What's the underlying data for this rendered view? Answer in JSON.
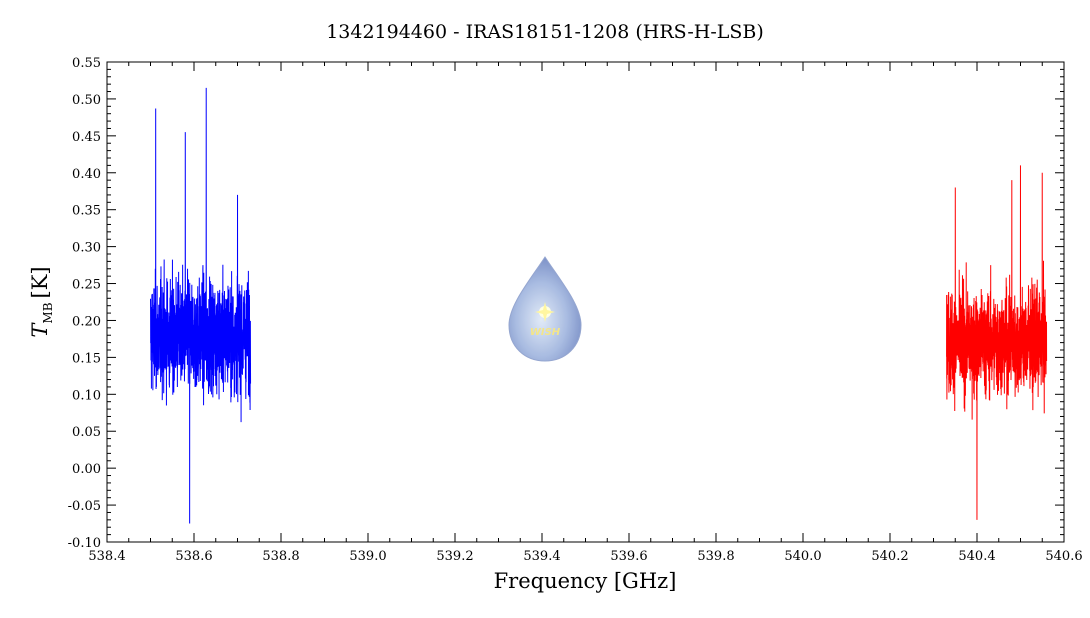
{
  "chart_data": {
    "type": "line",
    "title": "1342194460 - IRAS18151-1208 (HRS-H-LSB)",
    "xlabel": "Frequency [GHz]",
    "ylabel_main": "T",
    "ylabel_sub": "MB",
    "ylabel_unit": "[K]",
    "xlim": [
      538.4,
      540.6
    ],
    "ylim": [
      -0.1,
      0.55
    ],
    "xticks": [
      "538.4",
      "538.6",
      "538.8",
      "539.0",
      "539.2",
      "539.4",
      "539.6",
      "539.8",
      "540.0",
      "540.2",
      "540.4",
      "540.6"
    ],
    "yticks": [
      "-0.10",
      "-0.05",
      "0.00",
      "0.05",
      "0.10",
      "0.15",
      "0.20",
      "0.25",
      "0.30",
      "0.35",
      "0.40",
      "0.45",
      "0.50",
      "0.55"
    ],
    "grid": false,
    "series": [
      {
        "color": "#0000ff",
        "x_range": [
          538.5,
          538.73
        ],
        "mean": 0.18,
        "noise": 0.07,
        "min": -0.075,
        "max": 0.515,
        "peaks": [
          [
            538.512,
            0.487
          ],
          [
            538.628,
            0.515
          ],
          [
            538.59,
            -0.075
          ],
          [
            538.58,
            0.455
          ],
          [
            538.7,
            0.37
          ]
        ]
      },
      {
        "color": "#ff0000",
        "x_range": [
          540.33,
          540.56
        ],
        "mean": 0.17,
        "noise": 0.065,
        "min": -0.07,
        "max": 0.41,
        "peaks": [
          [
            540.5,
            0.41
          ],
          [
            540.4,
            -0.07
          ],
          [
            540.55,
            0.4
          ],
          [
            540.35,
            0.38
          ],
          [
            540.48,
            0.39
          ]
        ]
      }
    ],
    "watermark": {
      "text": "WISH"
    }
  }
}
